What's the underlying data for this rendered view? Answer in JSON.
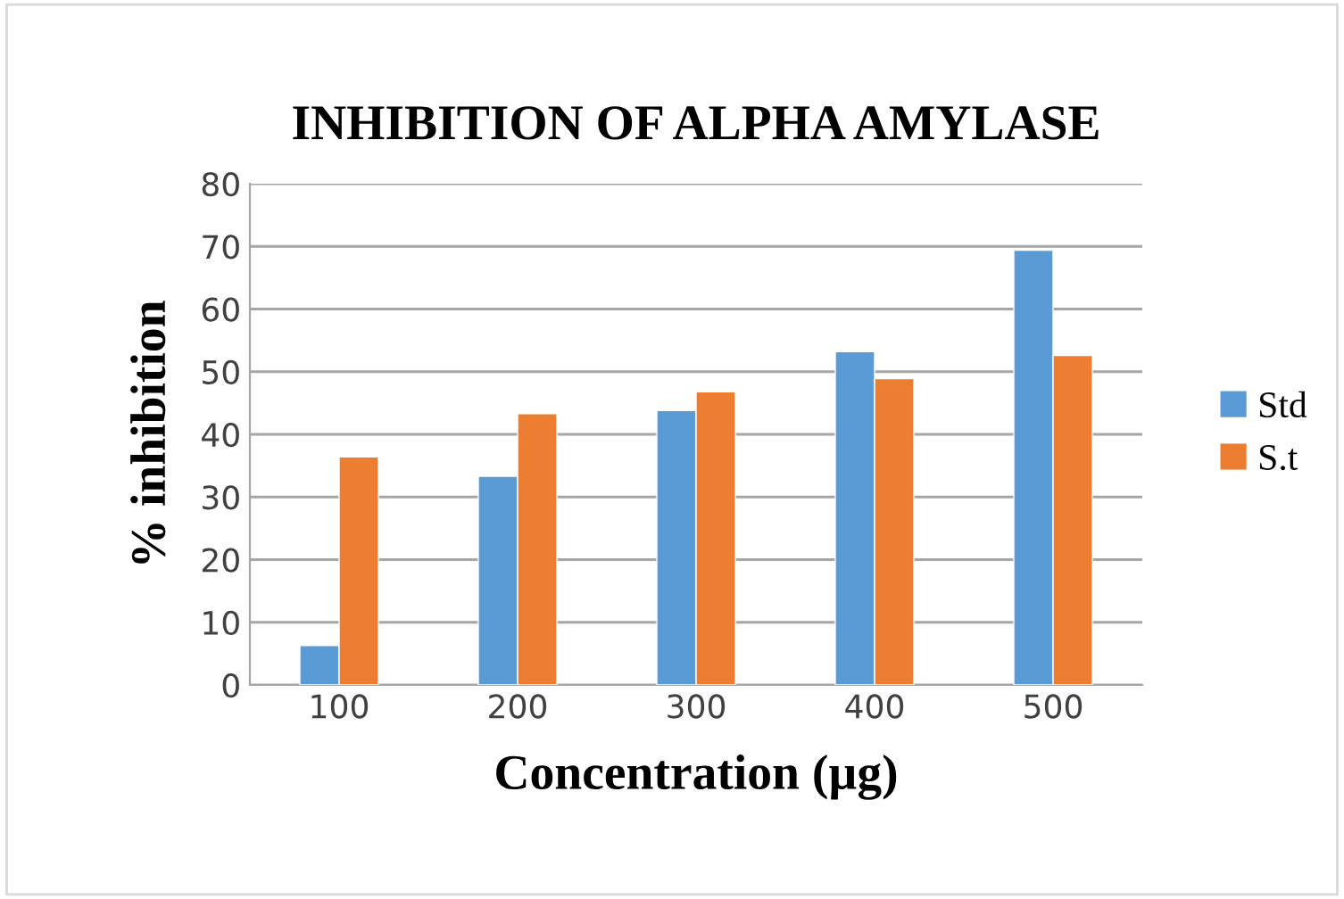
{
  "chart_data": {
    "type": "bar",
    "title": "INHIBITION OF ALPHA AMYLASE",
    "xlabel": "Concentration (µg)",
    "ylabel": "% inhibition",
    "categories": [
      "100",
      "200",
      "300",
      "400",
      "500"
    ],
    "series": [
      {
        "name": "Std",
        "color": "#5b9bd5",
        "values": [
          6.3,
          33.3,
          43.8,
          53.2,
          69.4
        ]
      },
      {
        "name": "S.t",
        "color": "#ed7d31",
        "values": [
          36.4,
          43.3,
          46.8,
          48.9,
          52.6
        ]
      }
    ],
    "ylim": [
      0,
      80
    ],
    "yticks": [
      0,
      10,
      20,
      30,
      40,
      50,
      60,
      70,
      80
    ],
    "grid": "y",
    "legend": "right"
  }
}
